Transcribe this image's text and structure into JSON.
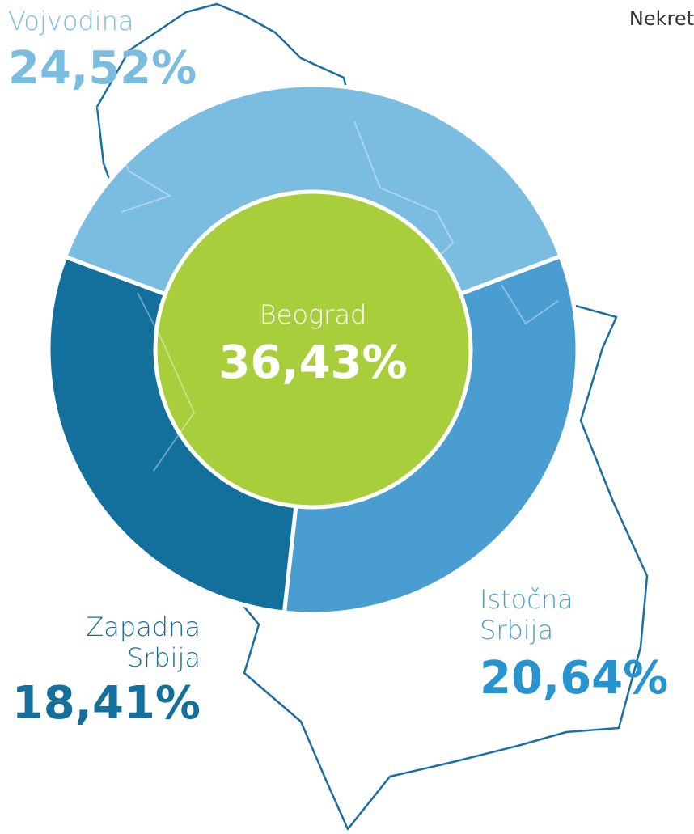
{
  "chart_data": {
    "type": "donut",
    "categories": [
      "Vojvodina",
      "Istočna Srbija",
      "Zapadna Srbija"
    ],
    "values": [
      24.52,
      20.64,
      18.41
    ],
    "value_labels": [
      "24,52%",
      "20,64%",
      "18,41%"
    ],
    "colors": [
      "#7bbde0",
      "#4a9dd0",
      "#13709c"
    ],
    "center": {
      "name": "Beograd",
      "value": 36.43,
      "value_label": "36,43%",
      "color": "#a8cf3b"
    },
    "corner_text": "Nekret"
  }
}
